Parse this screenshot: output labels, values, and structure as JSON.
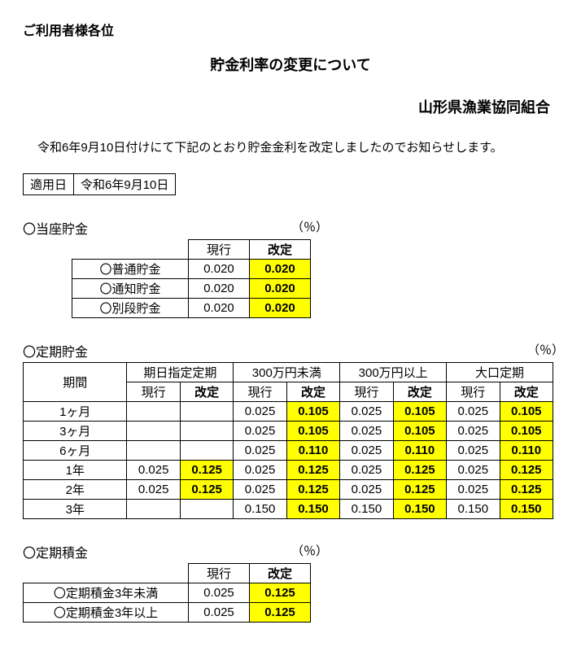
{
  "addressee": "ご利用者様各位",
  "title": "貯金利率の変更について",
  "organization": "山形県漁業協同組合",
  "intro": "令和6年9月10日付けにて下記のとおり貯金金利を改定しましたのでお知らせします。",
  "applyLabel": "適用日",
  "applyDate": "令和6年9月10日",
  "percentLabel": "（％）",
  "colCurrent": "現行",
  "colRevised": "改定",
  "sec1": {
    "heading": "〇当座貯金",
    "rows": [
      {
        "name": "〇普通貯金",
        "cur": "0.020",
        "rev": "0.020"
      },
      {
        "name": "〇通知貯金",
        "cur": "0.020",
        "rev": "0.020"
      },
      {
        "name": "〇別段貯金",
        "cur": "0.020",
        "rev": "0.020"
      }
    ]
  },
  "sec2": {
    "heading": "〇定期貯金",
    "periodLabel": "期間",
    "groups": [
      "期日指定定期",
      "300万円未満",
      "300万円以上",
      "大口定期"
    ],
    "rows": [
      {
        "period": "1ヶ月",
        "vals": [
          {
            "cur": "",
            "rev": ""
          },
          {
            "cur": "0.025",
            "rev": "0.105"
          },
          {
            "cur": "0.025",
            "rev": "0.105"
          },
          {
            "cur": "0.025",
            "rev": "0.105"
          }
        ]
      },
      {
        "period": "3ヶ月",
        "vals": [
          {
            "cur": "",
            "rev": ""
          },
          {
            "cur": "0.025",
            "rev": "0.105"
          },
          {
            "cur": "0.025",
            "rev": "0.105"
          },
          {
            "cur": "0.025",
            "rev": "0.105"
          }
        ]
      },
      {
        "period": "6ヶ月",
        "vals": [
          {
            "cur": "",
            "rev": ""
          },
          {
            "cur": "0.025",
            "rev": "0.110"
          },
          {
            "cur": "0.025",
            "rev": "0.110"
          },
          {
            "cur": "0.025",
            "rev": "0.110"
          }
        ]
      },
      {
        "period": "1年",
        "vals": [
          {
            "cur": "0.025",
            "rev": "0.125"
          },
          {
            "cur": "0.025",
            "rev": "0.125"
          },
          {
            "cur": "0.025",
            "rev": "0.125"
          },
          {
            "cur": "0.025",
            "rev": "0.125"
          }
        ]
      },
      {
        "period": "2年",
        "vals": [
          {
            "cur": "0.025",
            "rev": "0.125"
          },
          {
            "cur": "0.025",
            "rev": "0.125"
          },
          {
            "cur": "0.025",
            "rev": "0.125"
          },
          {
            "cur": "0.025",
            "rev": "0.125"
          }
        ]
      },
      {
        "period": "3年",
        "vals": [
          {
            "cur": "",
            "rev": ""
          },
          {
            "cur": "0.150",
            "rev": "0.150"
          },
          {
            "cur": "0.150",
            "rev": "0.150"
          },
          {
            "cur": "0.150",
            "rev": "0.150"
          }
        ]
      }
    ]
  },
  "sec3": {
    "heading": "〇定期積金",
    "rows": [
      {
        "name": "〇定期積金3年未満",
        "cur": "0.025",
        "rev": "0.125"
      },
      {
        "name": "〇定期積金3年以上",
        "cur": "0.025",
        "rev": "0.125"
      }
    ]
  },
  "style": {
    "highlight_color": "#ffff00",
    "border_color": "#000000",
    "background_color": "#ffffff",
    "text_color": "#000000",
    "base_fontsize": 15,
    "title_fontsize": 18,
    "heading_fontsize": 16
  }
}
